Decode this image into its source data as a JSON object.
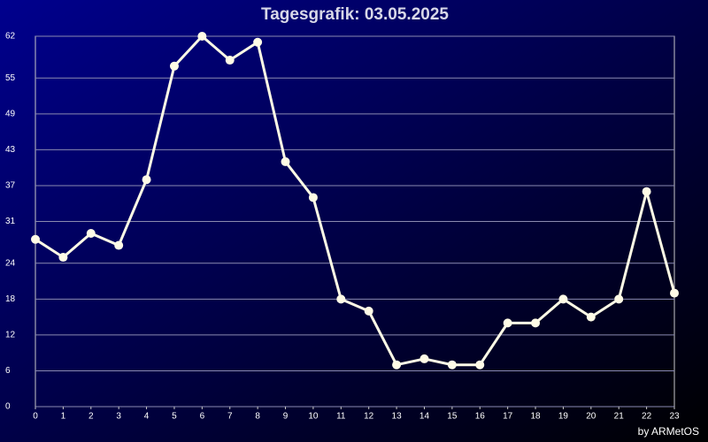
{
  "chart_data": {
    "type": "line",
    "title": "Tagesgrafik: 03.05.2025",
    "credit": "by ARMetOS",
    "x": [
      0,
      1,
      2,
      3,
      4,
      5,
      6,
      7,
      8,
      9,
      10,
      11,
      12,
      13,
      14,
      15,
      16,
      17,
      18,
      19,
      20,
      21,
      22,
      23
    ],
    "series": [
      {
        "color": "#fffbe6",
        "values": [
          28,
          25,
          29,
          27,
          38,
          57,
          62,
          58,
          61,
          41,
          35,
          18,
          16,
          7,
          8,
          7,
          7,
          14,
          14,
          18,
          15,
          18,
          36,
          19
        ]
      }
    ],
    "xlim": [
      0,
      23
    ],
    "xticks": [
      0,
      1,
      2,
      3,
      4,
      5,
      6,
      7,
      8,
      9,
      10,
      11,
      12,
      13,
      14,
      15,
      16,
      17,
      18,
      19,
      20,
      21,
      22,
      23
    ],
    "ylim": [
      0,
      62
    ],
    "yticks": [
      0,
      6,
      12,
      18,
      24,
      31,
      37,
      43,
      49,
      55,
      62
    ],
    "grid": true
  }
}
